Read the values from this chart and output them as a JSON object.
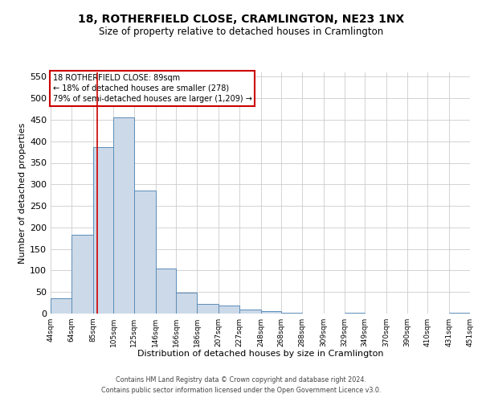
{
  "title": "18, ROTHERFIELD CLOSE, CRAMLINGTON, NE23 1NX",
  "subtitle": "Size of property relative to detached houses in Cramlington",
  "xlabel": "Distribution of detached houses by size in Cramlington",
  "ylabel": "Number of detached properties",
  "bar_edges": [
    44,
    64,
    85,
    105,
    125,
    146,
    166,
    186,
    207,
    227,
    248,
    268,
    288,
    309,
    329,
    349,
    370,
    390,
    410,
    431,
    451
  ],
  "bar_heights": [
    35,
    183,
    386,
    456,
    286,
    105,
    48,
    23,
    18,
    10,
    5,
    1,
    0,
    0,
    1,
    0,
    0,
    0,
    0,
    1
  ],
  "bar_color": "#ccd9e8",
  "bar_edge_color": "#5b8db8",
  "property_line_x": 89,
  "property_line_color": "#cc0000",
  "ylim": [
    0,
    560
  ],
  "yticks": [
    0,
    50,
    100,
    150,
    200,
    250,
    300,
    350,
    400,
    450,
    500,
    550
  ],
  "tick_labels": [
    "44sqm",
    "64sqm",
    "85sqm",
    "105sqm",
    "125sqm",
    "146sqm",
    "166sqm",
    "186sqm",
    "207sqm",
    "227sqm",
    "248sqm",
    "268sqm",
    "288sqm",
    "309sqm",
    "329sqm",
    "349sqm",
    "370sqm",
    "390sqm",
    "410sqm",
    "431sqm",
    "451sqm"
  ],
  "annotation_title": "18 ROTHERFIELD CLOSE: 89sqm",
  "annotation_line1": "← 18% of detached houses are smaller (278)",
  "annotation_line2": "79% of semi-detached houses are larger (1,209) →",
  "annotation_box_color": "#cc0000",
  "footer1": "Contains HM Land Registry data © Crown copyright and database right 2024.",
  "footer2": "Contains public sector information licensed under the Open Government Licence v3.0.",
  "grid_color": "#cccccc",
  "bg_color": "#ffffff",
  "title_fontsize": 10,
  "subtitle_fontsize": 8.5,
  "ylabel_fontsize": 8,
  "xlabel_fontsize": 8,
  "ytick_fontsize": 8,
  "xtick_fontsize": 6.5
}
